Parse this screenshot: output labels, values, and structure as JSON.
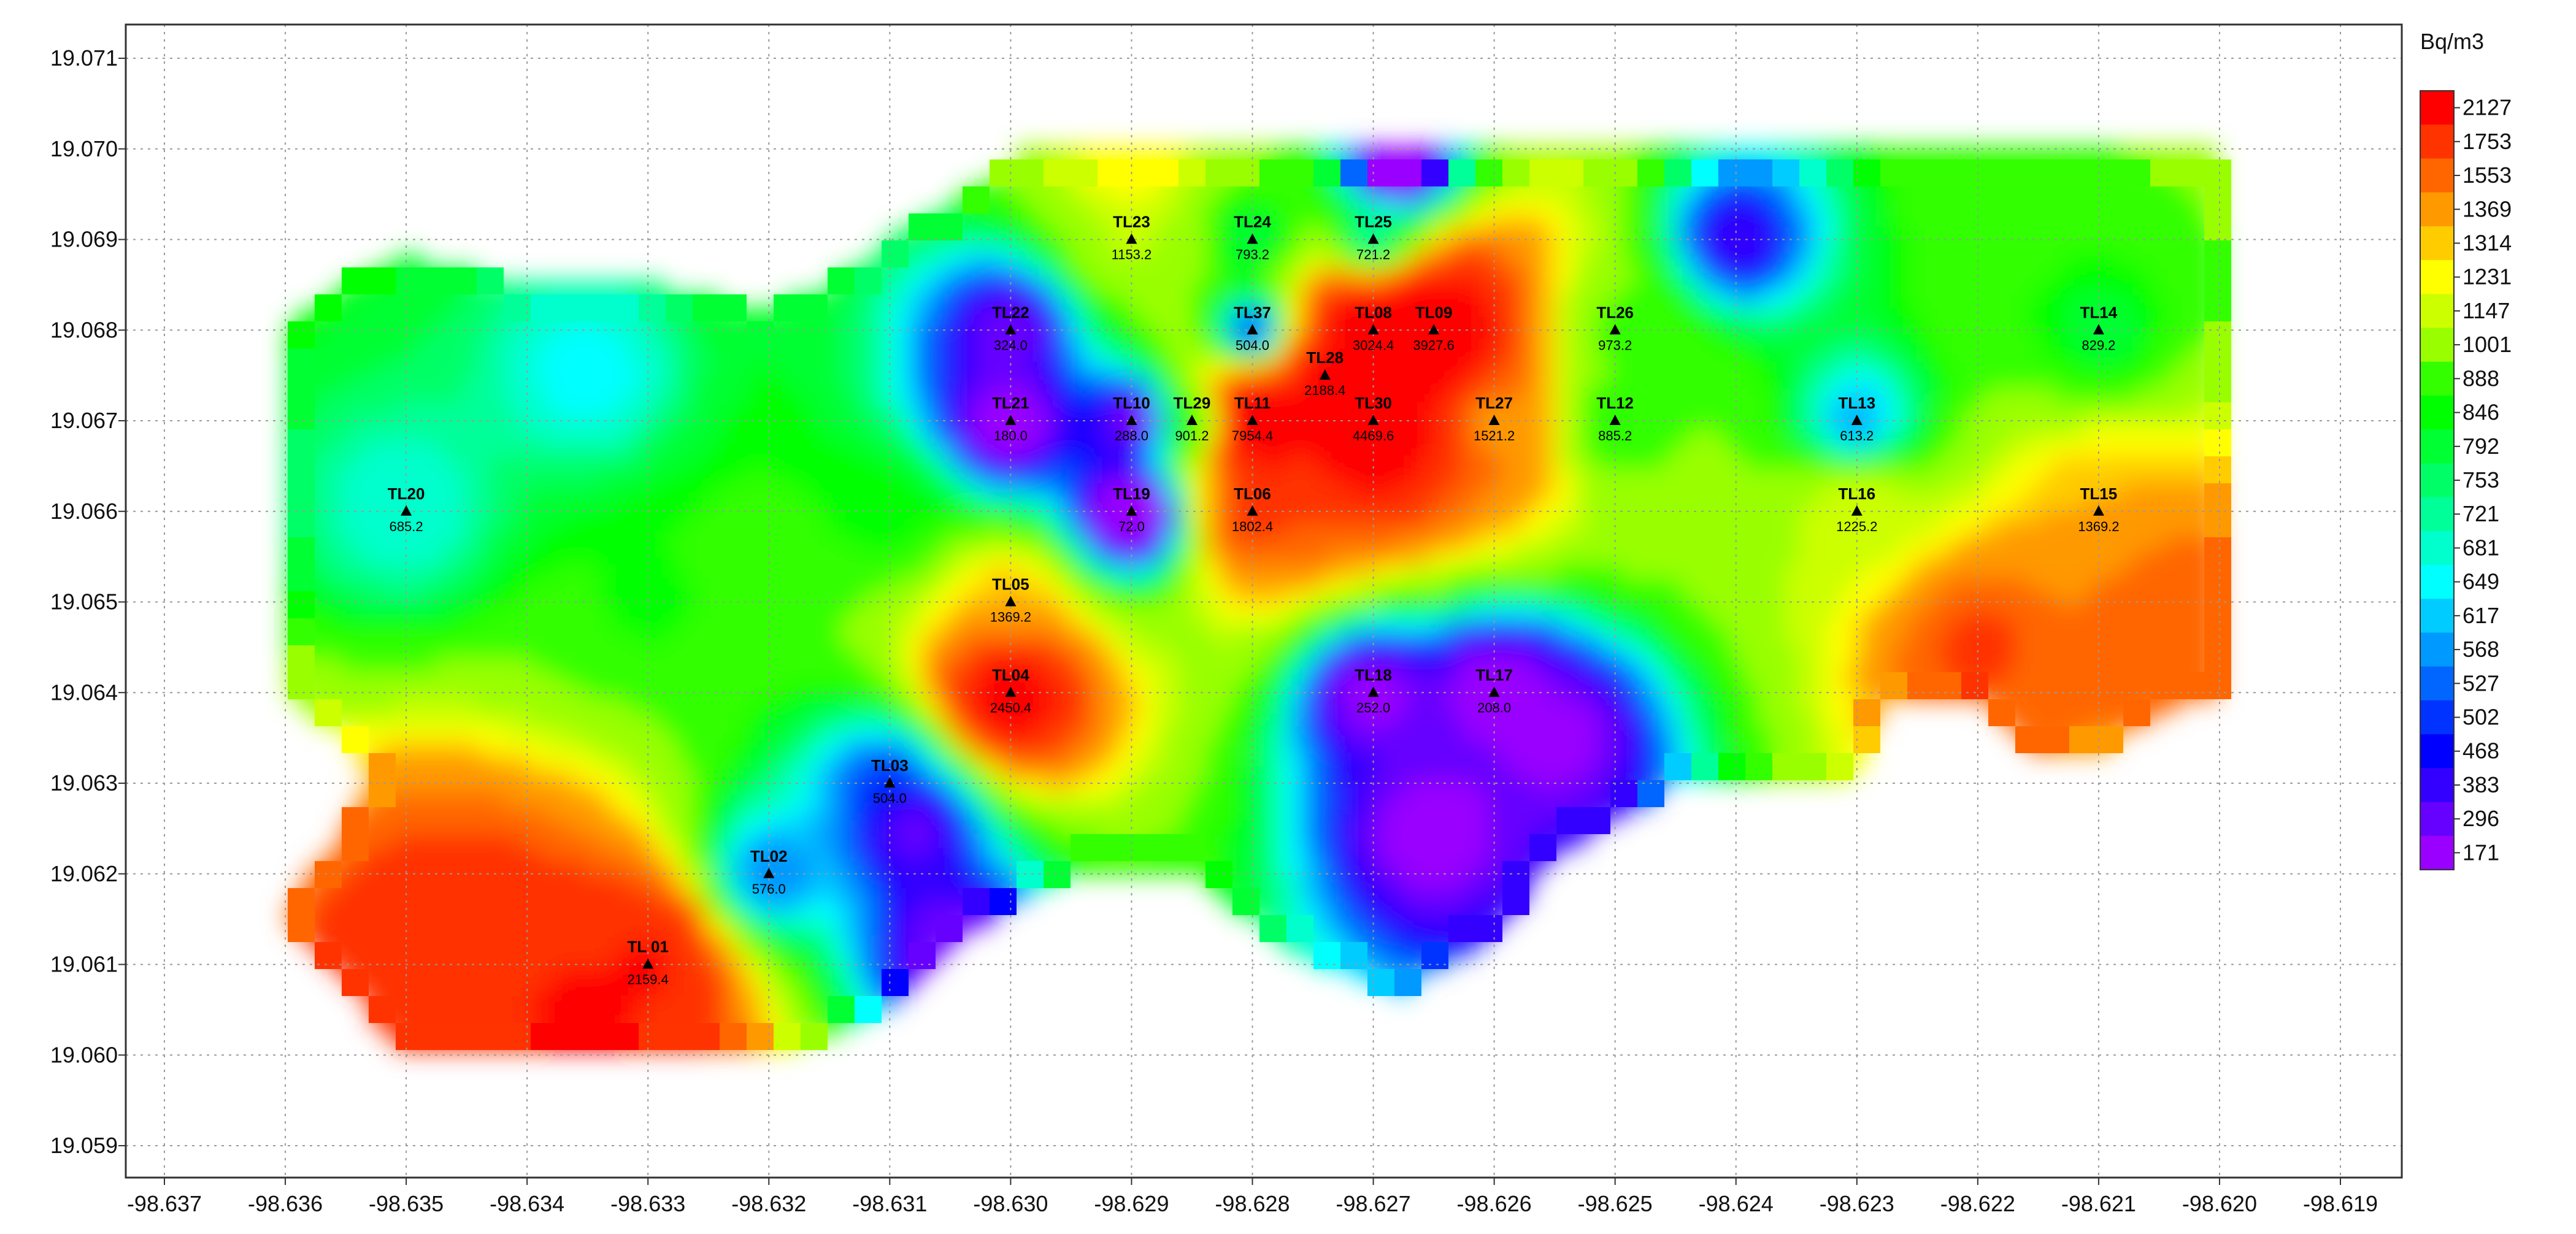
{
  "chart_data": {
    "type": "heatmap",
    "title": "",
    "xlabel": "",
    "ylabel": "",
    "unit": "Bq/m3",
    "xlim": [
      -98.637,
      -98.6185
    ],
    "ylim": [
      19.0588,
      19.0712
    ],
    "x_ticks": [
      "-98.637",
      "-98.636",
      "-98.635",
      "-98.634",
      "-98.633",
      "-98.632",
      "-98.631",
      "-98.630",
      "-98.629",
      "-98.628",
      "-98.627",
      "-98.626",
      "-98.625",
      "-98.624",
      "-98.623",
      "-98.622",
      "-98.621",
      "-98.620",
      "-98.619"
    ],
    "y_ticks": [
      "19.071",
      "19.070",
      "19.069",
      "19.068",
      "19.067",
      "19.066",
      "19.065",
      "19.064",
      "19.063",
      "19.062",
      "19.061",
      "19.060",
      "19.059"
    ],
    "grid": true,
    "legend_placement": "right",
    "legend": {
      "levels": [
        "2127",
        "1753",
        "1553",
        "1369",
        "1314",
        "1231",
        "1147",
        "1001",
        "888",
        "846",
        "792",
        "753",
        "721",
        "681",
        "649",
        "617",
        "568",
        "527",
        "502",
        "468",
        "383",
        "296",
        "171"
      ],
      "colors": [
        "#ff0000",
        "#ff3300",
        "#ff6600",
        "#ff9900",
        "#ffcc00",
        "#ffff00",
        "#ccff00",
        "#99ff00",
        "#33ff00",
        "#00ff00",
        "#00ff33",
        "#00ff66",
        "#00ff99",
        "#00ffcc",
        "#00ffff",
        "#00ccff",
        "#0099ff",
        "#0066ff",
        "#0033ff",
        "#0000ff",
        "#3300ff",
        "#6600ff",
        "#9900ff"
      ]
    },
    "stations": [
      {
        "name": "TL 01",
        "x": -98.633,
        "y": 19.061,
        "value": "2159.4"
      },
      {
        "name": "TL02",
        "x": -98.632,
        "y": 19.062,
        "value": "576.0"
      },
      {
        "name": "TL03",
        "x": -98.631,
        "y": 19.063,
        "value": "504.0"
      },
      {
        "name": "TL04",
        "x": -98.63,
        "y": 19.064,
        "value": "2450.4"
      },
      {
        "name": "TL05",
        "x": -98.63,
        "y": 19.065,
        "value": "1369.2"
      },
      {
        "name": "TL06",
        "x": -98.628,
        "y": 19.066,
        "value": "1802.4"
      },
      {
        "name": "TL37",
        "x": -98.628,
        "y": 19.068,
        "value": "504.0"
      },
      {
        "name": "TL08",
        "x": -98.627,
        "y": 19.068,
        "value": "3024.4"
      },
      {
        "name": "TL09",
        "x": -98.6265,
        "y": 19.068,
        "value": "3927.6"
      },
      {
        "name": "TL10",
        "x": -98.629,
        "y": 19.067,
        "value": "288.0"
      },
      {
        "name": "TL11",
        "x": -98.628,
        "y": 19.067,
        "value": "7954.4"
      },
      {
        "name": "TL12",
        "x": -98.625,
        "y": 19.067,
        "value": "885.2"
      },
      {
        "name": "TL13",
        "x": -98.623,
        "y": 19.067,
        "value": "613.2"
      },
      {
        "name": "TL14",
        "x": -98.621,
        "y": 19.068,
        "value": "829.2"
      },
      {
        "name": "TL15",
        "x": -98.621,
        "y": 19.066,
        "value": "1369.2"
      },
      {
        "name": "TL16",
        "x": -98.623,
        "y": 19.066,
        "value": "1225.2"
      },
      {
        "name": "TL17",
        "x": -98.626,
        "y": 19.064,
        "value": "208.0"
      },
      {
        "name": "TL18",
        "x": -98.627,
        "y": 19.064,
        "value": "252.0"
      },
      {
        "name": "TL19",
        "x": -98.629,
        "y": 19.066,
        "value": "72.0"
      },
      {
        "name": "TL20",
        "x": -98.635,
        "y": 19.066,
        "value": "685.2"
      },
      {
        "name": "TL21",
        "x": -98.63,
        "y": 19.067,
        "value": "180.0"
      },
      {
        "name": "TL22",
        "x": -98.63,
        "y": 19.068,
        "value": "324.0"
      },
      {
        "name": "TL23",
        "x": -98.629,
        "y": 19.069,
        "value": "1153.2"
      },
      {
        "name": "TL24",
        "x": -98.628,
        "y": 19.069,
        "value": "793.2"
      },
      {
        "name": "TL25",
        "x": -98.627,
        "y": 19.069,
        "value": "721.2"
      },
      {
        "name": "TL26",
        "x": -98.625,
        "y": 19.068,
        "value": "973.2"
      },
      {
        "name": "TL27",
        "x": -98.626,
        "y": 19.067,
        "value": "1521.2"
      },
      {
        "name": "TL28",
        "x": -98.6274,
        "y": 19.0675,
        "value": "2188.4"
      },
      {
        "name": "TL29",
        "x": -98.6285,
        "y": 19.067,
        "value": "901.2"
      },
      {
        "name": "TL30",
        "x": -98.627,
        "y": 19.067,
        "value": "4469.6"
      }
    ]
  }
}
